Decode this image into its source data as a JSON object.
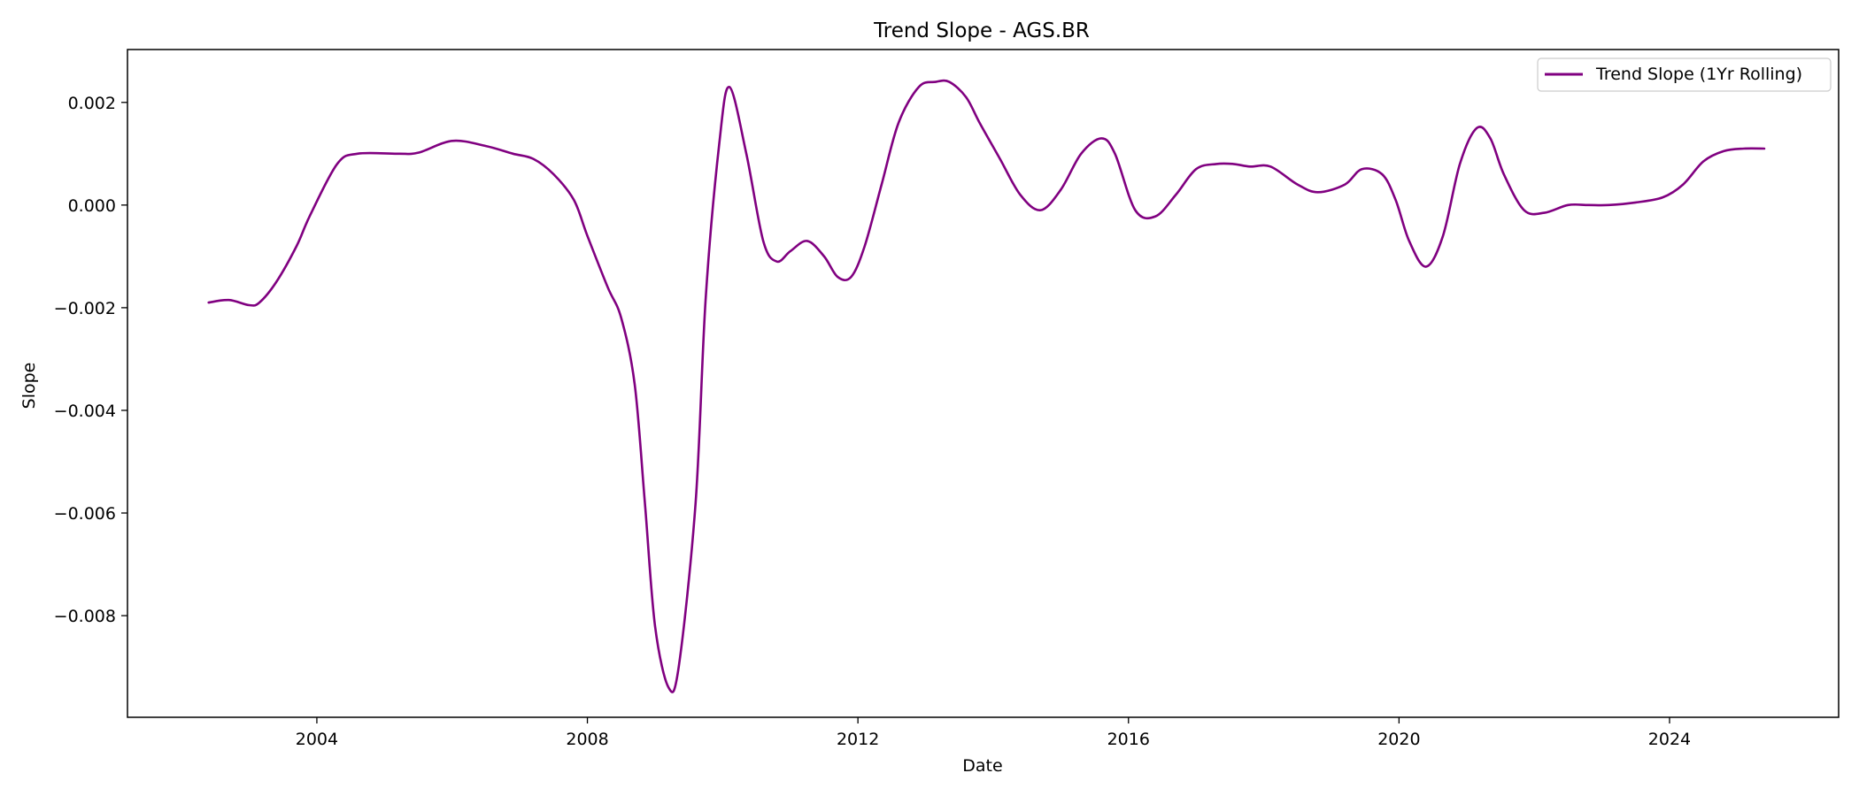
{
  "chart_data": {
    "type": "line",
    "title": "Trend Slope - AGS.BR",
    "xlabel": "Date",
    "ylabel": "Slope",
    "xlim": [
      2001.2,
      2026.5
    ],
    "ylim": [
      -0.00998,
      0.00303
    ],
    "x_ticks": [
      2004,
      2008,
      2012,
      2016,
      2020,
      2024
    ],
    "x_tick_labels": [
      "2004",
      "2008",
      "2012",
      "2016",
      "2020",
      "2024"
    ],
    "y_ticks": [
      0.002,
      0.0,
      -0.002,
      -0.004,
      -0.006,
      -0.008
    ],
    "y_tick_labels": [
      "0.002",
      "0.000",
      "−0.002",
      "−0.004",
      "−0.006",
      "−0.008"
    ],
    "grid": false,
    "legend_position": "top-right",
    "series": [
      {
        "name": "Trend Slope (1Yr Rolling)",
        "color": "#800080",
        "x": [
          2002.4,
          2002.7,
          2003.0,
          2003.15,
          2003.4,
          2003.7,
          2003.9,
          2004.3,
          2004.6,
          2005.2,
          2005.5,
          2006.0,
          2006.5,
          2006.9,
          2007.2,
          2007.5,
          2007.8,
          2008.0,
          2008.3,
          2008.5,
          2008.7,
          2008.85,
          2009.0,
          2009.2,
          2009.35,
          2009.6,
          2009.75,
          2009.95,
          2010.1,
          2010.35,
          2010.6,
          2010.8,
          2011.0,
          2011.25,
          2011.5,
          2011.7,
          2011.9,
          2012.1,
          2012.35,
          2012.6,
          2012.9,
          2013.15,
          2013.35,
          2013.6,
          2013.8,
          2014.1,
          2014.4,
          2014.7,
          2015.0,
          2015.3,
          2015.6,
          2015.8,
          2016.1,
          2016.4,
          2016.7,
          2017.0,
          2017.3,
          2017.55,
          2017.8,
          2018.1,
          2018.5,
          2018.8,
          2019.2,
          2019.45,
          2019.75,
          2019.95,
          2020.15,
          2020.4,
          2020.65,
          2020.9,
          2021.15,
          2021.35,
          2021.55,
          2021.85,
          2022.15,
          2022.5,
          2022.8,
          2023.1,
          2023.5,
          2023.9,
          2024.2,
          2024.5,
          2024.8,
          2025.1,
          2025.4
        ],
        "y": [
          -0.0019,
          -0.00185,
          -0.00195,
          -0.0019,
          -0.0015,
          -0.0008,
          -0.0002,
          0.0008,
          0.001,
          0.001,
          0.00102,
          0.00125,
          0.00115,
          0.001,
          0.0009,
          0.0006,
          0.0001,
          -0.0006,
          -0.0016,
          -0.0022,
          -0.0035,
          -0.0058,
          -0.0082,
          -0.0094,
          -0.009,
          -0.0058,
          -0.0018,
          0.0012,
          0.0023,
          0.001,
          -0.0007,
          -0.0011,
          -0.0009,
          -0.0007,
          -0.001,
          -0.0014,
          -0.0014,
          -0.0008,
          0.0004,
          0.0016,
          0.0023,
          0.0024,
          0.0024,
          0.0021,
          0.0016,
          0.0009,
          0.0002,
          -0.0001,
          0.0003,
          0.001,
          0.0013,
          0.001,
          -0.0001,
          -0.00022,
          0.0002,
          0.0007,
          0.0008,
          0.0008,
          0.00075,
          0.00075,
          0.0004,
          0.00025,
          0.0004,
          0.0007,
          0.0006,
          0.0001,
          -0.0007,
          -0.0012,
          -0.0006,
          0.0008,
          0.0015,
          0.0013,
          0.0006,
          -0.0001,
          -0.00015,
          0.0,
          0.0,
          0.0,
          5e-05,
          0.00015,
          0.0004,
          0.00085,
          0.00105,
          0.0011,
          0.0011
        ]
      }
    ]
  }
}
